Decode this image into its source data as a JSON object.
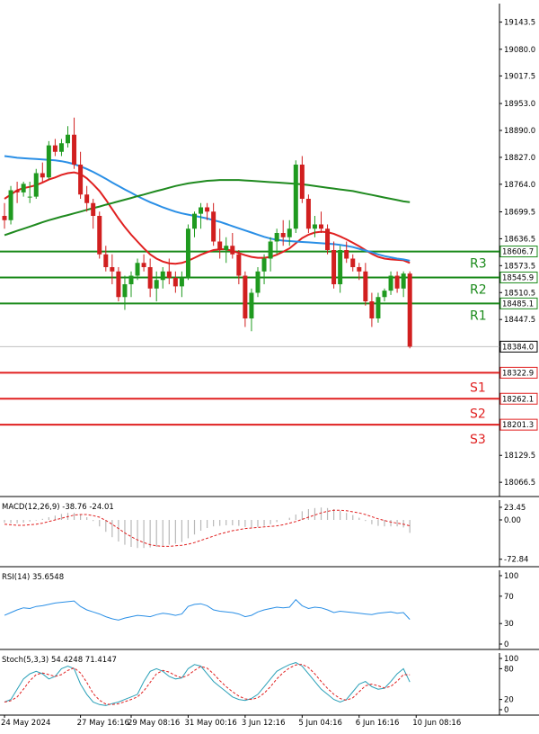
{
  "colors": {
    "up": "#1f9a1f",
    "down": "#d11f1f",
    "ma_fast": "#e02020",
    "ma_mid": "#2a8fe6",
    "ma_slow": "#1f8a1f",
    "resistance": "#1a8a1a",
    "support": "#e02020",
    "grid": "#e8e8e8",
    "price_tag_bg": "#ffffff"
  },
  "chart_data": {
    "type": "candlestick",
    "price_axis": {
      "ylim": [
        18050,
        19170
      ],
      "ticks": [
        "19143.5",
        "19080.0",
        "19017.5",
        "18953.0",
        "18890.0",
        "18827.0",
        "18764.0",
        "18699.5",
        "18636.5",
        "18573.5",
        "18510.5",
        "18447.5",
        "18384.0",
        "18322.9",
        "18262.1",
        "18201.3",
        "18129.5",
        "18066.5"
      ],
      "tick_values": [
        19143.5,
        19080.0,
        19017.5,
        18953.0,
        18890.0,
        18827.0,
        18764.0,
        18699.5,
        18636.5,
        18573.5,
        18510.5,
        18447.5,
        18384.0,
        18322.9,
        18262.1,
        18201.3,
        18129.5,
        18066.5
      ]
    },
    "time_axis": {
      "labels": [
        "24 May 2024",
        "27 May 16:16",
        "29 May 08:16",
        "31 May 00:16",
        "3 Jun 12:16",
        "5 Jun 04:16",
        "6 Jun 16:16",
        "10 Jun 08:16"
      ],
      "label_bar_index": [
        0,
        12,
        20,
        29,
        38,
        47,
        56,
        65
      ]
    },
    "candles": [
      [
        18690,
        18720,
        18660,
        18680
      ],
      [
        18680,
        18760,
        18670,
        18750
      ],
      [
        18750,
        18770,
        18720,
        18745
      ],
      [
        18745,
        18770,
        18735,
        18765
      ],
      [
        18735,
        18770,
        18720,
        18735
      ],
      [
        18735,
        18800,
        18730,
        18790
      ],
      [
        18790,
        18815,
        18770,
        18780
      ],
      [
        18780,
        18865,
        18775,
        18855
      ],
      [
        18855,
        18870,
        18830,
        18840
      ],
      [
        18840,
        18870,
        18830,
        18860
      ],
      [
        18860,
        18900,
        18850,
        18880
      ],
      [
        18880,
        18920,
        18800,
        18810
      ],
      [
        18810,
        18840,
        18730,
        18740
      ],
      [
        18740,
        18760,
        18700,
        18720
      ],
      [
        18720,
        18730,
        18660,
        18690
      ],
      [
        18690,
        18700,
        18590,
        18600
      ],
      [
        18600,
        18620,
        18560,
        18570
      ],
      [
        18570,
        18600,
        18530,
        18560
      ],
      [
        18560,
        18570,
        18490,
        18500
      ],
      [
        18500,
        18550,
        18470,
        18530
      ],
      [
        18530,
        18560,
        18500,
        18550
      ],
      [
        18550,
        18590,
        18540,
        18580
      ],
      [
        18580,
        18600,
        18560,
        18570
      ],
      [
        18570,
        18590,
        18500,
        18520
      ],
      [
        18520,
        18560,
        18490,
        18540
      ],
      [
        18540,
        18570,
        18520,
        18560
      ],
      [
        18560,
        18590,
        18530,
        18545
      ],
      [
        18545,
        18560,
        18510,
        18525
      ],
      [
        18525,
        18560,
        18500,
        18545
      ],
      [
        18545,
        18670,
        18540,
        18660
      ],
      [
        18660,
        18700,
        18640,
        18695
      ],
      [
        18695,
        18720,
        18660,
        18710
      ],
      [
        18710,
        18720,
        18680,
        18700
      ],
      [
        18700,
        18720,
        18620,
        18630
      ],
      [
        18630,
        18660,
        18590,
        18610
      ],
      [
        18610,
        18640,
        18580,
        18620
      ],
      [
        18620,
        18650,
        18590,
        18600
      ],
      [
        18600,
        18610,
        18530,
        18550
      ],
      [
        18550,
        18560,
        18430,
        18450
      ],
      [
        18450,
        18520,
        18420,
        18510
      ],
      [
        18510,
        18570,
        18500,
        18560
      ],
      [
        18560,
        18600,
        18530,
        18590
      ],
      [
        18590,
        18640,
        18560,
        18630
      ],
      [
        18630,
        18660,
        18600,
        18650
      ],
      [
        18650,
        18680,
        18620,
        18640
      ],
      [
        18640,
        18680,
        18620,
        18660
      ],
      [
        18660,
        18820,
        18650,
        18810
      ],
      [
        18810,
        18830,
        18720,
        18730
      ],
      [
        18730,
        18740,
        18650,
        18660
      ],
      [
        18660,
        18690,
        18640,
        18670
      ],
      [
        18670,
        18700,
        18650,
        18660
      ],
      [
        18660,
        18670,
        18600,
        18610
      ],
      [
        18610,
        18630,
        18520,
        18530
      ],
      [
        18530,
        18620,
        18510,
        18610
      ],
      [
        18610,
        18630,
        18580,
        18590
      ],
      [
        18590,
        18600,
        18560,
        18570
      ],
      [
        18570,
        18580,
        18540,
        18560
      ],
      [
        18560,
        18580,
        18480,
        18490
      ],
      [
        18490,
        18510,
        18430,
        18450
      ],
      [
        18450,
        18510,
        18440,
        18500
      ],
      [
        18500,
        18520,
        18490,
        18515
      ],
      [
        18515,
        18560,
        18505,
        18550
      ],
      [
        18550,
        18560,
        18510,
        18520
      ],
      [
        18520,
        18560,
        18500,
        18555
      ],
      [
        18555,
        18560,
        18380,
        18384
      ]
    ],
    "moving_averages": [
      {
        "color_key": "ma_fast",
        "values": [
          18730,
          18740,
          18750,
          18755,
          18758,
          18762,
          18768,
          18775,
          18780,
          18786,
          18790,
          18792,
          18788,
          18778,
          18764,
          18748,
          18728,
          18706,
          18684,
          18664,
          18646,
          18630,
          18614,
          18600,
          18590,
          18583,
          18579,
          18578,
          18580,
          18585,
          18592,
          18599,
          18605,
          18610,
          18612,
          18612,
          18608,
          18603,
          18598,
          18594,
          18592,
          18592,
          18594,
          18599,
          18606,
          18614,
          18626,
          18638,
          18646,
          18651,
          18653,
          18652,
          18648,
          18642,
          18635,
          18627,
          18619,
          18610,
          18601,
          18594,
          18590,
          18588,
          18587,
          18586,
          18580
        ]
      },
      {
        "color_key": "ma_mid",
        "values": [
          18830,
          18828,
          18826,
          18825,
          18824,
          18823,
          18822,
          18821,
          18820,
          18818,
          18815,
          18811,
          18806,
          18800,
          18793,
          18785,
          18777,
          18768,
          18760,
          18752,
          18744,
          18736,
          18729,
          18722,
          18716,
          18710,
          18705,
          18700,
          18696,
          18693,
          18690,
          18687,
          18684,
          18680,
          18676,
          18671,
          18666,
          18661,
          18656,
          18651,
          18646,
          18641,
          18637,
          18634,
          18632,
          18631,
          18630,
          18629,
          18628,
          18627,
          18626,
          18625,
          18624,
          18622,
          18620,
          18617,
          18613,
          18609,
          18605,
          18600,
          18596,
          18593,
          18590,
          18588,
          18585
        ]
      },
      {
        "color_key": "ma_slow",
        "values": [
          18645,
          18650,
          18655,
          18660,
          18665,
          18670,
          18675,
          18680,
          18684,
          18688,
          18692,
          18696,
          18700,
          18704,
          18708,
          18712,
          18716,
          18720,
          18724,
          18728,
          18732,
          18736,
          18740,
          18744,
          18748,
          18752,
          18756,
          18760,
          18763,
          18766,
          18768,
          18770,
          18772,
          18773,
          18774,
          18774,
          18774,
          18774,
          18773,
          18772,
          18771,
          18770,
          18769,
          18768,
          18767,
          18766,
          18765,
          18764,
          18762,
          18760,
          18758,
          18756,
          18754,
          18752,
          18750,
          18748,
          18745,
          18742,
          18739,
          18736,
          18733,
          18730,
          18727,
          18724,
          18722
        ]
      }
    ],
    "level_lines": [
      {
        "label": "R3",
        "tag": "18606.7",
        "value": 18606.7,
        "kind": "resistance"
      },
      {
        "label": "R2",
        "tag": "18545.9",
        "value": 18545.9,
        "kind": "resistance"
      },
      {
        "label": "R1",
        "tag": "18485.1",
        "value": 18485.1,
        "kind": "resistance"
      },
      {
        "label": "",
        "tag": "18384.0",
        "value": 18384.0,
        "kind": "current"
      },
      {
        "label": "S1",
        "tag": "18322.9",
        "value": 18322.9,
        "kind": "support"
      },
      {
        "label": "S2",
        "tag": "18262.1",
        "value": 18262.1,
        "kind": "support"
      },
      {
        "label": "S3",
        "tag": "18201.3",
        "value": 18201.3,
        "kind": "support"
      }
    ],
    "macd": {
      "title": "MACD(12,26,9) -38.76 -24.01",
      "ylim": [
        -80,
        30
      ],
      "ticks": [
        "23.45",
        "0.00",
        "-72.84"
      ],
      "tick_values": [
        23.45,
        0.0,
        -72.84
      ],
      "histogram": [
        -5,
        -6,
        -6,
        -5,
        -3,
        -1,
        2,
        5,
        8,
        11,
        13,
        13,
        10,
        5,
        -2,
        -12,
        -22,
        -32,
        -40,
        -46,
        -50,
        -52,
        -52,
        -51,
        -50,
        -48,
        -46,
        -44,
        -41,
        -34,
        -27,
        -20,
        -15,
        -12,
        -11,
        -10,
        -10,
        -11,
        -13,
        -14,
        -13,
        -11,
        -8,
        -4,
        0,
        4,
        10,
        16,
        20,
        22,
        23,
        22,
        20,
        17,
        13,
        9,
        4,
        -2,
        -8,
        -11,
        -12,
        -12,
        -12,
        -14,
        -24
      ],
      "signal": [
        -8,
        -9,
        -10,
        -10,
        -9,
        -8,
        -6,
        -3,
        0,
        3,
        6,
        9,
        10,
        10,
        8,
        5,
        -1,
        -8,
        -16,
        -24,
        -31,
        -37,
        -42,
        -46,
        -48,
        -49,
        -49,
        -48,
        -47,
        -45,
        -42,
        -38,
        -34,
        -30,
        -26,
        -23,
        -20,
        -18,
        -16,
        -15,
        -14,
        -13,
        -12,
        -11,
        -9,
        -6,
        -3,
        1,
        5,
        9,
        13,
        16,
        18,
        18,
        17,
        15,
        13,
        10,
        6,
        2,
        -1,
        -4,
        -6,
        -8,
        -11
      ]
    },
    "rsi": {
      "title": "RSI(14) 35.6548",
      "ylim": [
        0,
        100
      ],
      "ticks": [
        "100",
        "70",
        "30",
        "0"
      ],
      "tick_values": [
        100,
        70,
        30,
        0
      ],
      "values": [
        42,
        46,
        50,
        53,
        52,
        55,
        56,
        58,
        60,
        61,
        62,
        63,
        55,
        50,
        47,
        44,
        40,
        37,
        35,
        38,
        40,
        42,
        41,
        40,
        43,
        45,
        44,
        42,
        44,
        55,
        58,
        59,
        56,
        50,
        48,
        47,
        46,
        44,
        40,
        42,
        47,
        50,
        52,
        54,
        53,
        54,
        65,
        56,
        52,
        54,
        53,
        50,
        46,
        48,
        47,
        46,
        45,
        44,
        43,
        45,
        46,
        47,
        45,
        46,
        36
      ]
    },
    "stoch": {
      "title": "Stoch(5,3,3) 54.4248 71.4147",
      "ylim": [
        0,
        100
      ],
      "ticks": [
        "100",
        "80",
        "20",
        "0"
      ],
      "tick_values": [
        100,
        80,
        20,
        0
      ],
      "k": [
        15,
        20,
        40,
        60,
        70,
        75,
        70,
        60,
        65,
        80,
        85,
        80,
        50,
        30,
        15,
        10,
        8,
        12,
        15,
        20,
        25,
        30,
        55,
        75,
        80,
        75,
        65,
        60,
        62,
        80,
        88,
        85,
        70,
        55,
        45,
        35,
        25,
        20,
        18,
        22,
        30,
        45,
        60,
        75,
        82,
        88,
        92,
        85,
        70,
        55,
        40,
        30,
        20,
        15,
        20,
        35,
        50,
        55,
        45,
        40,
        42,
        55,
        70,
        80,
        54
      ]
    }
  }
}
